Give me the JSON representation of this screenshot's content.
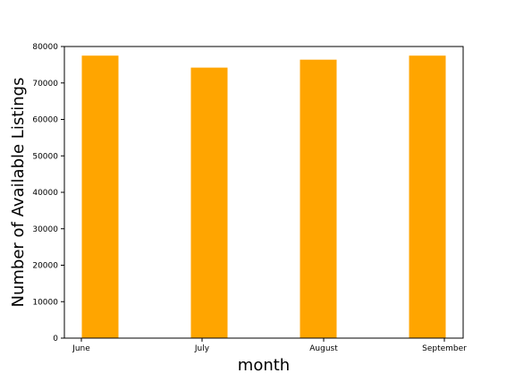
{
  "chart_data": {
    "type": "bar",
    "categories": [
      "June",
      "July",
      "August",
      "September"
    ],
    "values": [
      77500,
      74200,
      76400,
      77500
    ],
    "xlabel": "month",
    "ylabel": "Number of Available Listings",
    "ylim": [
      0,
      80000
    ],
    "yticks": [
      "0",
      "10000",
      "20000",
      "30000",
      "40000",
      "50000",
      "60000",
      "70000",
      "80000"
    ],
    "bar_color": "#ffa500",
    "grid": false,
    "legend": "none"
  }
}
